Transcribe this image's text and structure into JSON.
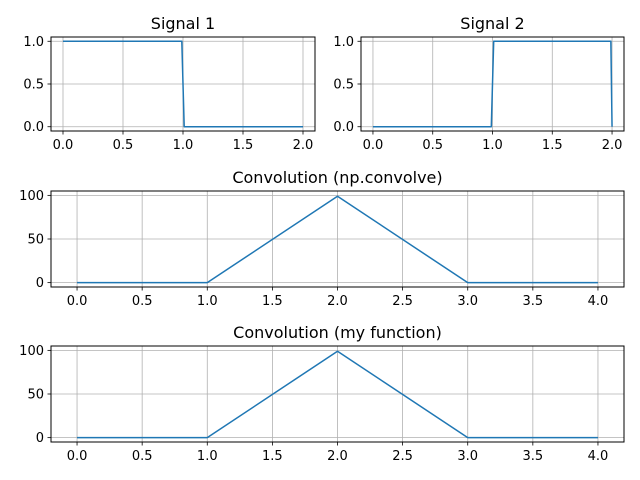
{
  "chart_data": [
    {
      "type": "line",
      "title": "Signal 1",
      "xlim": [
        -0.1,
        2.1
      ],
      "ylim": [
        -0.05,
        1.05
      ],
      "xticks": [
        0.0,
        0.5,
        1.0,
        1.5,
        2.0
      ],
      "xtick_labels": [
        "0.0",
        "0.5",
        "1.0",
        "1.5",
        "2.0"
      ],
      "yticks": [
        0.0,
        0.5,
        1.0
      ],
      "ytick_labels": [
        "0.0",
        "0.5",
        "1.0"
      ],
      "grid": true,
      "series": [
        {
          "color": "#1f77b4",
          "x": [
            0,
            0.99,
            1.01,
            2.0
          ],
          "y": [
            1,
            1,
            0,
            0
          ]
        }
      ]
    },
    {
      "type": "line",
      "title": "Signal 2",
      "xlim": [
        -0.1,
        2.1
      ],
      "ylim": [
        -0.05,
        1.05
      ],
      "xticks": [
        0.0,
        0.5,
        1.0,
        1.5,
        2.0
      ],
      "xtick_labels": [
        "0.0",
        "0.5",
        "1.0",
        "1.5",
        "2.0"
      ],
      "yticks": [
        0.0,
        0.5,
        1.0
      ],
      "ytick_labels": [
        "0.0",
        "0.5",
        "1.0"
      ],
      "grid": true,
      "series": [
        {
          "color": "#1f77b4",
          "x": [
            0,
            0.99,
            1.01,
            1.99,
            2.0
          ],
          "y": [
            0,
            0,
            1,
            1,
            0
          ]
        }
      ]
    },
    {
      "type": "line",
      "title": "Convolution (np.convolve)",
      "xlim": [
        -0.2,
        4.2
      ],
      "ylim": [
        -5,
        105
      ],
      "xticks": [
        0.0,
        0.5,
        1.0,
        1.5,
        2.0,
        2.5,
        3.0,
        3.5,
        4.0
      ],
      "xtick_labels": [
        "0.0",
        "0.5",
        "1.0",
        "1.5",
        "2.0",
        "2.5",
        "3.0",
        "3.5",
        "4.0"
      ],
      "yticks": [
        0,
        50,
        100
      ],
      "ytick_labels": [
        "0",
        "50",
        "100"
      ],
      "grid": true,
      "series": [
        {
          "color": "#1f77b4",
          "x": [
            0,
            1,
            2,
            3,
            4
          ],
          "y": [
            0,
            0,
            99,
            0,
            0
          ]
        }
      ]
    },
    {
      "type": "line",
      "title": "Convolution (my function)",
      "xlim": [
        -0.2,
        4.2
      ],
      "ylim": [
        -5,
        105
      ],
      "xticks": [
        0.0,
        0.5,
        1.0,
        1.5,
        2.0,
        2.5,
        3.0,
        3.5,
        4.0
      ],
      "xtick_labels": [
        "0.0",
        "0.5",
        "1.0",
        "1.5",
        "2.0",
        "2.5",
        "3.0",
        "3.5",
        "4.0"
      ],
      "yticks": [
        0,
        50,
        100
      ],
      "ytick_labels": [
        "0",
        "50",
        "100"
      ],
      "grid": true,
      "series": [
        {
          "color": "#1f77b4",
          "x": [
            0,
            1,
            2,
            3,
            4
          ],
          "y": [
            0,
            0,
            99,
            0,
            0
          ]
        }
      ]
    }
  ]
}
